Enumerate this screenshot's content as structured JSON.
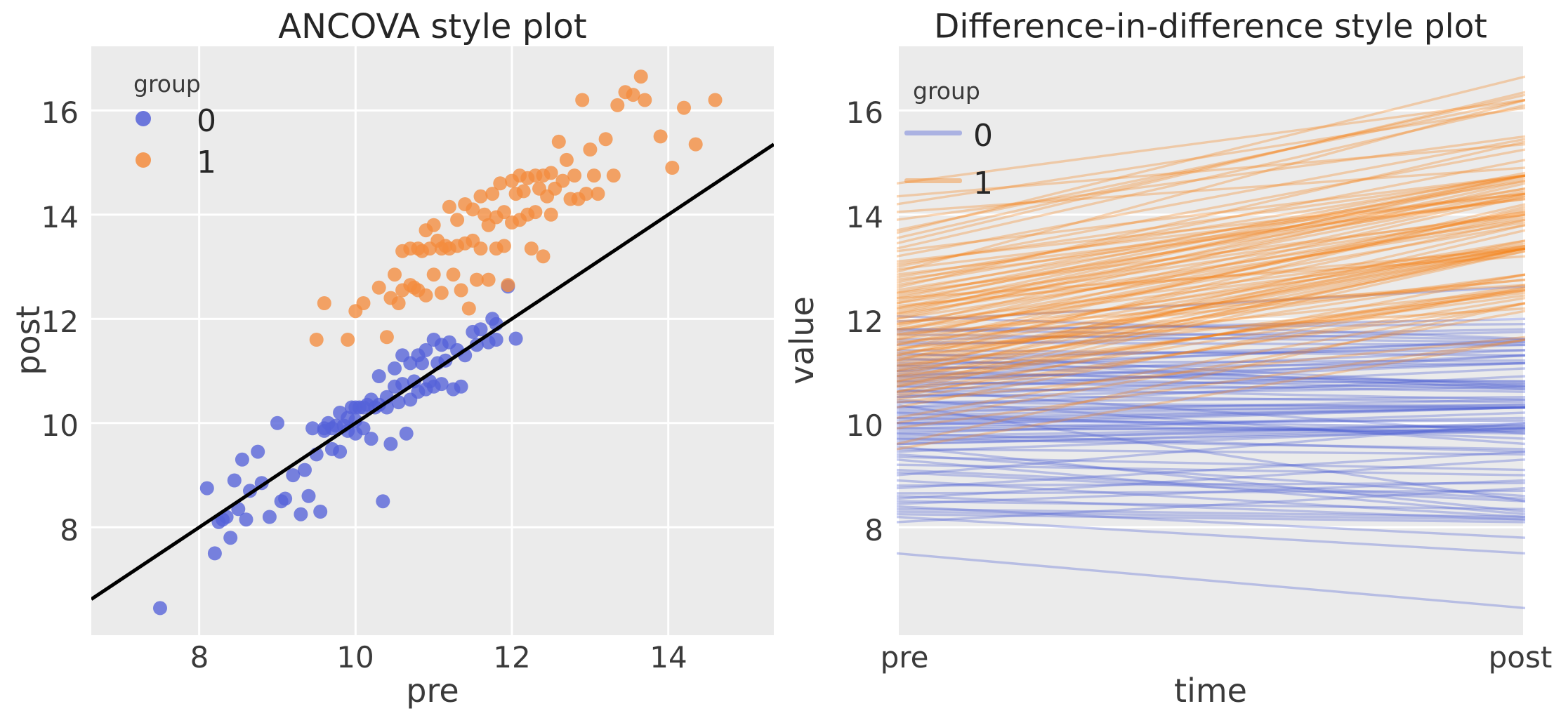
{
  "figure": {
    "background": "#ffffff",
    "axes_background": "#ebebeb",
    "grid_color": "#ffffff",
    "tick_color": "#3a3a3a",
    "title_color": "#262626"
  },
  "chart_data": {
    "panels": [
      {
        "type": "scatter",
        "title": "ANCOVA style plot",
        "xlabel": "pre",
        "ylabel": "post",
        "xticks": [
          8,
          10,
          12,
          14
        ],
        "yticks": [
          16,
          14,
          12,
          10,
          8
        ],
        "xlim": [
          6.62,
          15.35
        ],
        "ylim": [
          5.93,
          17.23
        ],
        "grid": true,
        "legend": {
          "title": "group",
          "position": "upper left",
          "entries": [
            {
              "label": "0"
            },
            {
              "label": "1"
            }
          ]
        },
        "identity_line": {
          "x": [
            6.62,
            15.35
          ],
          "y": [
            6.62,
            15.35
          ],
          "color": "#000000",
          "width": 5
        }
      },
      {
        "type": "line",
        "title": "Difference-in-difference style plot",
        "xlabel": "time",
        "ylabel": "value",
        "categories": [
          "pre",
          "post"
        ],
        "yticks": [
          16,
          14,
          12,
          10,
          8
        ],
        "ylim": [
          5.93,
          17.23
        ],
        "grid": true,
        "legend": {
          "title": "group",
          "position": "upper left",
          "entries": [
            {
              "label": "0"
            },
            {
              "label": "1"
            }
          ]
        }
      }
    ],
    "groups": [
      {
        "name": "0",
        "scatter_color": "#5561d8",
        "scatter_alpha": 0.78,
        "line_color": "#4a5cd4",
        "line_alpha": 0.32,
        "pairs": [
          [
            7.5,
            6.45
          ],
          [
            8.1,
            8.75
          ],
          [
            8.2,
            7.5
          ],
          [
            8.25,
            8.1
          ],
          [
            8.3,
            8.15
          ],
          [
            8.35,
            8.2
          ],
          [
            8.4,
            7.8
          ],
          [
            8.45,
            8.9
          ],
          [
            8.5,
            8.35
          ],
          [
            8.55,
            9.3
          ],
          [
            8.6,
            8.15
          ],
          [
            8.65,
            8.7
          ],
          [
            8.75,
            9.45
          ],
          [
            8.8,
            8.85
          ],
          [
            8.9,
            8.2
          ],
          [
            9.0,
            10.0
          ],
          [
            9.05,
            8.5
          ],
          [
            9.1,
            8.55
          ],
          [
            9.2,
            9.0
          ],
          [
            9.3,
            8.25
          ],
          [
            9.35,
            9.1
          ],
          [
            9.4,
            8.6
          ],
          [
            9.45,
            9.9
          ],
          [
            9.5,
            9.4
          ],
          [
            9.55,
            8.3
          ],
          [
            9.6,
            9.9
          ],
          [
            9.6,
            9.85
          ],
          [
            9.65,
            10.0
          ],
          [
            9.7,
            9.9
          ],
          [
            9.7,
            9.5
          ],
          [
            9.75,
            9.95
          ],
          [
            9.8,
            10.2
          ],
          [
            9.8,
            9.45
          ],
          [
            9.85,
            9.95
          ],
          [
            9.9,
            10.1
          ],
          [
            9.9,
            9.85
          ],
          [
            9.95,
            10.3
          ],
          [
            10.0,
            10.3
          ],
          [
            10.0,
            10.05
          ],
          [
            10.0,
            9.8
          ],
          [
            10.05,
            10.3
          ],
          [
            10.1,
            10.3
          ],
          [
            10.1,
            9.9
          ],
          [
            10.15,
            10.35
          ],
          [
            10.2,
            10.45
          ],
          [
            10.2,
            9.7
          ],
          [
            10.25,
            10.3
          ],
          [
            10.3,
            10.9
          ],
          [
            10.3,
            10.35
          ],
          [
            10.35,
            8.5
          ],
          [
            10.4,
            10.5
          ],
          [
            10.4,
            10.3
          ],
          [
            10.45,
            9.6
          ],
          [
            10.5,
            11.05
          ],
          [
            10.5,
            10.7
          ],
          [
            10.55,
            10.4
          ],
          [
            10.6,
            11.3
          ],
          [
            10.6,
            10.75
          ],
          [
            10.65,
            9.8
          ],
          [
            10.7,
            11.15
          ],
          [
            10.7,
            10.45
          ],
          [
            10.75,
            10.8
          ],
          [
            10.8,
            11.3
          ],
          [
            10.8,
            10.6
          ],
          [
            10.85,
            11.15
          ],
          [
            10.9,
            11.4
          ],
          [
            10.9,
            10.65
          ],
          [
            10.95,
            10.8
          ],
          [
            11.0,
            11.6
          ],
          [
            11.0,
            10.7
          ],
          [
            11.05,
            11.15
          ],
          [
            11.1,
            11.5
          ],
          [
            11.1,
            10.75
          ],
          [
            11.15,
            11.2
          ],
          [
            11.2,
            11.55
          ],
          [
            11.25,
            10.65
          ],
          [
            11.3,
            11.4
          ],
          [
            11.35,
            10.7
          ],
          [
            11.4,
            11.3
          ],
          [
            11.5,
            11.75
          ],
          [
            11.55,
            11.5
          ],
          [
            11.6,
            11.8
          ],
          [
            11.7,
            11.55
          ],
          [
            11.75,
            12.0
          ],
          [
            11.8,
            11.6
          ],
          [
            11.8,
            11.9
          ],
          [
            11.95,
            12.62
          ],
          [
            12.05,
            11.62
          ]
        ]
      },
      {
        "name": "1",
        "scatter_color": "#f48c3d",
        "scatter_alpha": 0.78,
        "line_color": "#f5831a",
        "line_alpha": 0.32,
        "pairs": [
          [
            9.5,
            11.6
          ],
          [
            9.6,
            12.3
          ],
          [
            9.9,
            11.6
          ],
          [
            10.0,
            12.15
          ],
          [
            10.1,
            12.3
          ],
          [
            10.3,
            12.6
          ],
          [
            10.4,
            11.65
          ],
          [
            10.45,
            12.4
          ],
          [
            10.5,
            12.85
          ],
          [
            10.55,
            12.3
          ],
          [
            10.6,
            13.3
          ],
          [
            10.6,
            12.55
          ],
          [
            10.7,
            13.35
          ],
          [
            10.7,
            12.65
          ],
          [
            10.75,
            12.6
          ],
          [
            10.8,
            13.35
          ],
          [
            10.8,
            12.55
          ],
          [
            10.85,
            13.3
          ],
          [
            10.9,
            13.7
          ],
          [
            10.9,
            12.45
          ],
          [
            10.95,
            13.35
          ],
          [
            11.0,
            13.8
          ],
          [
            11.0,
            12.85
          ],
          [
            11.05,
            13.5
          ],
          [
            11.1,
            13.35
          ],
          [
            11.1,
            12.5
          ],
          [
            11.15,
            13.4
          ],
          [
            11.2,
            14.15
          ],
          [
            11.2,
            13.35
          ],
          [
            11.25,
            12.85
          ],
          [
            11.3,
            13.9
          ],
          [
            11.3,
            13.4
          ],
          [
            11.35,
            12.55
          ],
          [
            11.4,
            14.2
          ],
          [
            11.4,
            13.45
          ],
          [
            11.45,
            12.2
          ],
          [
            11.5,
            14.1
          ],
          [
            11.5,
            13.5
          ],
          [
            11.55,
            12.75
          ],
          [
            11.6,
            14.35
          ],
          [
            11.6,
            13.35
          ],
          [
            11.65,
            14.0
          ],
          [
            11.7,
            13.8
          ],
          [
            11.7,
            12.75
          ],
          [
            11.75,
            14.4
          ],
          [
            11.8,
            13.95
          ],
          [
            11.8,
            13.35
          ],
          [
            11.85,
            14.6
          ],
          [
            11.9,
            14.05
          ],
          [
            11.9,
            13.4
          ],
          [
            11.95,
            12.65
          ],
          [
            12.0,
            14.65
          ],
          [
            12.0,
            13.85
          ],
          [
            12.05,
            14.4
          ],
          [
            12.1,
            14.75
          ],
          [
            12.1,
            13.9
          ],
          [
            12.15,
            14.45
          ],
          [
            12.2,
            14.7
          ],
          [
            12.2,
            14.0
          ],
          [
            12.25,
            13.35
          ],
          [
            12.3,
            14.75
          ],
          [
            12.3,
            14.05
          ],
          [
            12.35,
            14.5
          ],
          [
            12.4,
            14.75
          ],
          [
            12.4,
            13.2
          ],
          [
            12.45,
            14.35
          ],
          [
            12.5,
            14.8
          ],
          [
            12.5,
            14.0
          ],
          [
            12.55,
            14.5
          ],
          [
            12.6,
            15.4
          ],
          [
            12.65,
            14.65
          ],
          [
            12.7,
            15.05
          ],
          [
            12.75,
            14.3
          ],
          [
            12.8,
            14.75
          ],
          [
            12.85,
            14.3
          ],
          [
            12.9,
            16.2
          ],
          [
            12.95,
            14.4
          ],
          [
            13.0,
            15.25
          ],
          [
            13.05,
            14.75
          ],
          [
            13.1,
            14.4
          ],
          [
            13.2,
            15.45
          ],
          [
            13.3,
            14.75
          ],
          [
            13.35,
            16.1
          ],
          [
            13.45,
            16.35
          ],
          [
            13.55,
            16.3
          ],
          [
            13.65,
            16.65
          ],
          [
            13.7,
            16.2
          ],
          [
            13.9,
            15.5
          ],
          [
            14.05,
            14.9
          ],
          [
            14.2,
            16.05
          ],
          [
            14.35,
            15.35
          ],
          [
            14.6,
            16.2
          ]
        ]
      }
    ]
  }
}
